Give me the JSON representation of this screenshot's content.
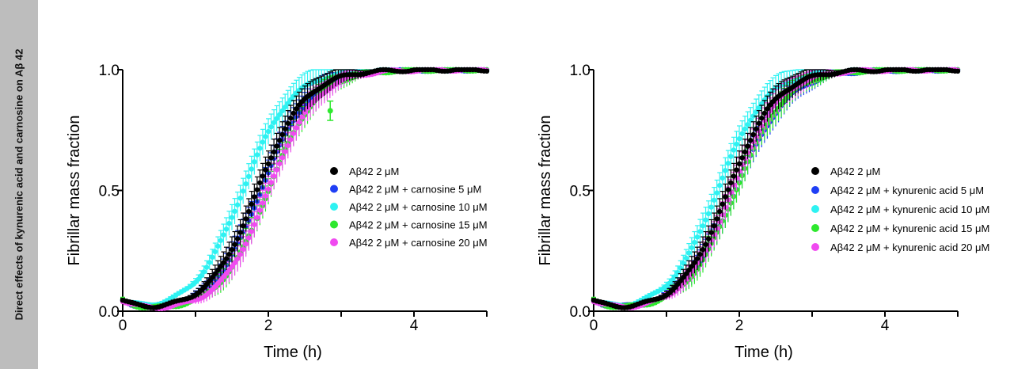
{
  "side_label": "Direct effects of kynurenic acid and carnosine on Aβ 42",
  "colors": {
    "series": [
      "#000000",
      "#1f3ff5",
      "#2ef2f2",
      "#2ee82e",
      "#f04af0"
    ]
  },
  "chart_data": [
    {
      "type": "scatter",
      "xlabel": "Time (h)",
      "ylabel": "Fibrillar mass fraction",
      "xlim": [
        0,
        5
      ],
      "ylim": [
        0,
        1
      ],
      "xticks": [
        "0",
        "2",
        "4"
      ],
      "yticks": [
        "0.0",
        "0.5",
        "1.0"
      ],
      "legend_position": "right",
      "error_bars": true,
      "series": [
        {
          "name": "Aβ42 2 μM",
          "color": "#000000",
          "midpoint_h": 1.85,
          "rate": 3.0
        },
        {
          "name": "Aβ42 2 μM + carnosine 5 μM",
          "color": "#1f3ff5",
          "midpoint_h": 1.9,
          "rate": 3.0
        },
        {
          "name": "Aβ42 2 μM + carnosine 10 μM",
          "color": "#2ef2f2",
          "midpoint_h": 1.65,
          "rate": 3.0
        },
        {
          "name": "Aβ42 2 μM + carnosine 15 μM",
          "color": "#2ee82e",
          "midpoint_h": 2.0,
          "rate": 3.0
        },
        {
          "name": "Aβ42 2 μM + carnosine 20 μM",
          "color": "#f04af0",
          "midpoint_h": 2.0,
          "rate": 3.0
        }
      ],
      "annotations": [
        {
          "x": 2.85,
          "y": 0.83,
          "color": "#2ee82e",
          "note": "isolated point"
        }
      ]
    },
    {
      "type": "scatter",
      "xlabel": "Time (h)",
      "ylabel": "Fibrillar mass fraction",
      "xlim": [
        0,
        5
      ],
      "ylim": [
        0,
        1
      ],
      "xticks": [
        "0",
        "2",
        "4"
      ],
      "yticks": [
        "0.0",
        "0.5",
        "1.0"
      ],
      "legend_position": "right",
      "error_bars": true,
      "series": [
        {
          "name": "Aβ42 2 μM",
          "color": "#000000",
          "midpoint_h": 1.85,
          "rate": 3.0
        },
        {
          "name": "Aβ42 2 μM + kynurenic acid 5 μM",
          "color": "#1f3ff5",
          "midpoint_h": 1.95,
          "rate": 2.8
        },
        {
          "name": "Aβ42 2 μM + kynurenic acid 10 μM",
          "color": "#2ef2f2",
          "midpoint_h": 1.7,
          "rate": 3.0
        },
        {
          "name": "Aβ42 2 μM + kynurenic acid 15 μM",
          "color": "#2ee82e",
          "midpoint_h": 1.95,
          "rate": 2.9
        },
        {
          "name": "Aβ42 2 μM + kynurenic acid 20 μM",
          "color": "#f04af0",
          "midpoint_h": 1.9,
          "rate": 3.0
        }
      ]
    }
  ]
}
